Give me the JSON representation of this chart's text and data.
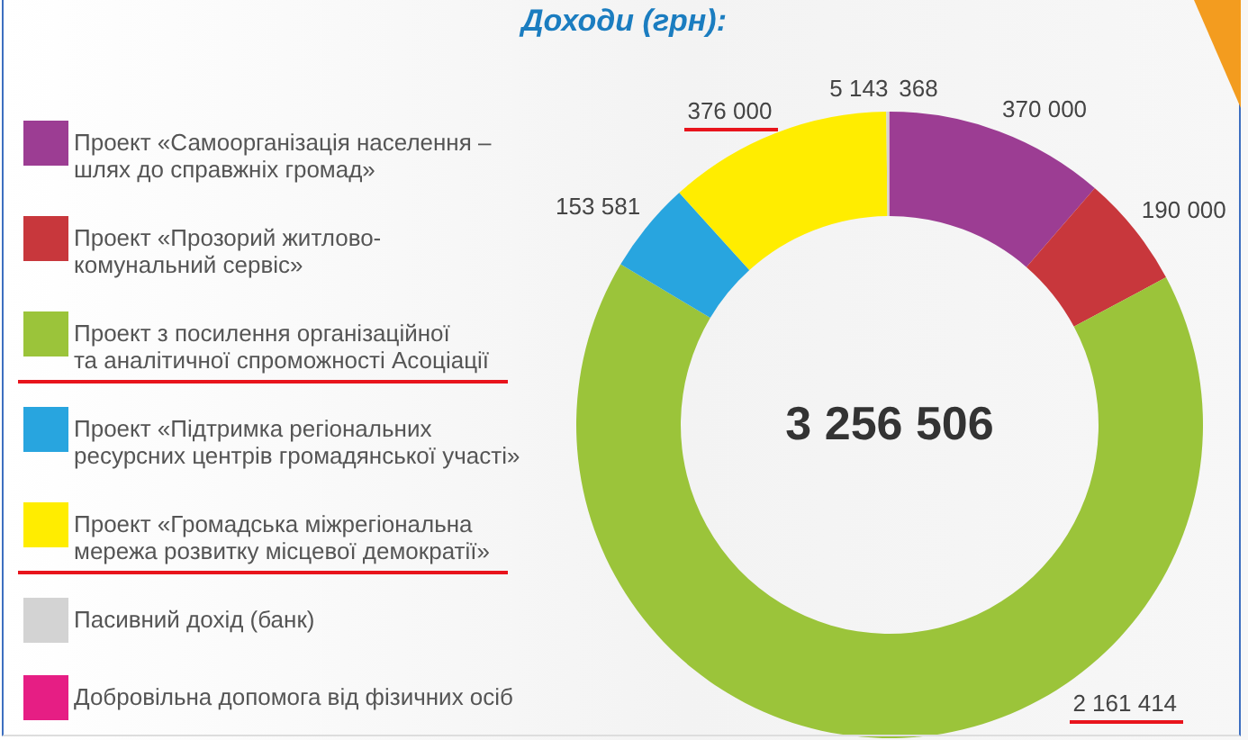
{
  "chart_data": {
    "type": "donut",
    "title": "Доходи (грн):",
    "categories": [
      "Проект «Самоорганізація населення –\nшлях до справжніх громад»",
      "Проект «Прозорий житлово-\nкомунальний сервіс»",
      "Проект з посилення організаційної\nта аналітичної спроможності Асоціації",
      "Проект «Підтримка регіональних\nресурсних центрів громадянської участі»",
      "Проект «Громадська міжрегіональна\nмережа розвитку місцевої демократії»",
      "Пасивний дохід (банк)",
      "Добровільна допомога від фізичних осіб"
    ],
    "values": [
      370000,
      190000,
      2161414,
      153581,
      376000,
      5143,
      368
    ],
    "colors": [
      "#9c3d93",
      "#c8373c",
      "#9bc43a",
      "#28a5df",
      "#ffed00",
      "#d3d3d3",
      "#e61e84"
    ],
    "data_labels": true,
    "legend": "left",
    "annotations": [
      "3 256 506"
    ]
  }
}
